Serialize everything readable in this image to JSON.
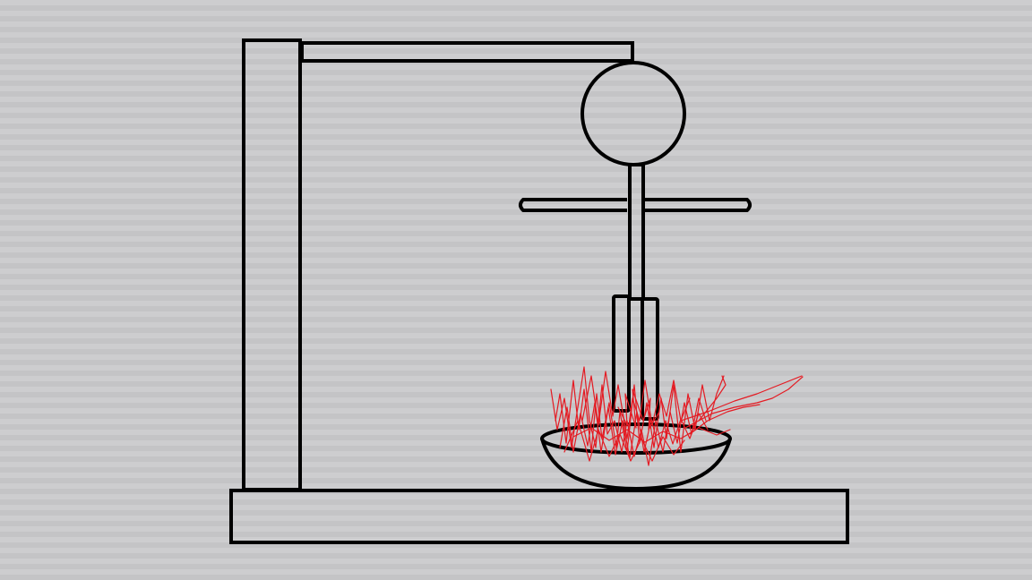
{
  "colors": {
    "background": "#c4c4c6",
    "stripe": "#cdcdcf",
    "outline": "#000000",
    "flame": "#e41b23"
  },
  "icons": {
    "structure": "gallows-frame-icon",
    "figure": "stick-figure-icon",
    "bowl": "bowl-icon",
    "fire": "fire-icon"
  }
}
